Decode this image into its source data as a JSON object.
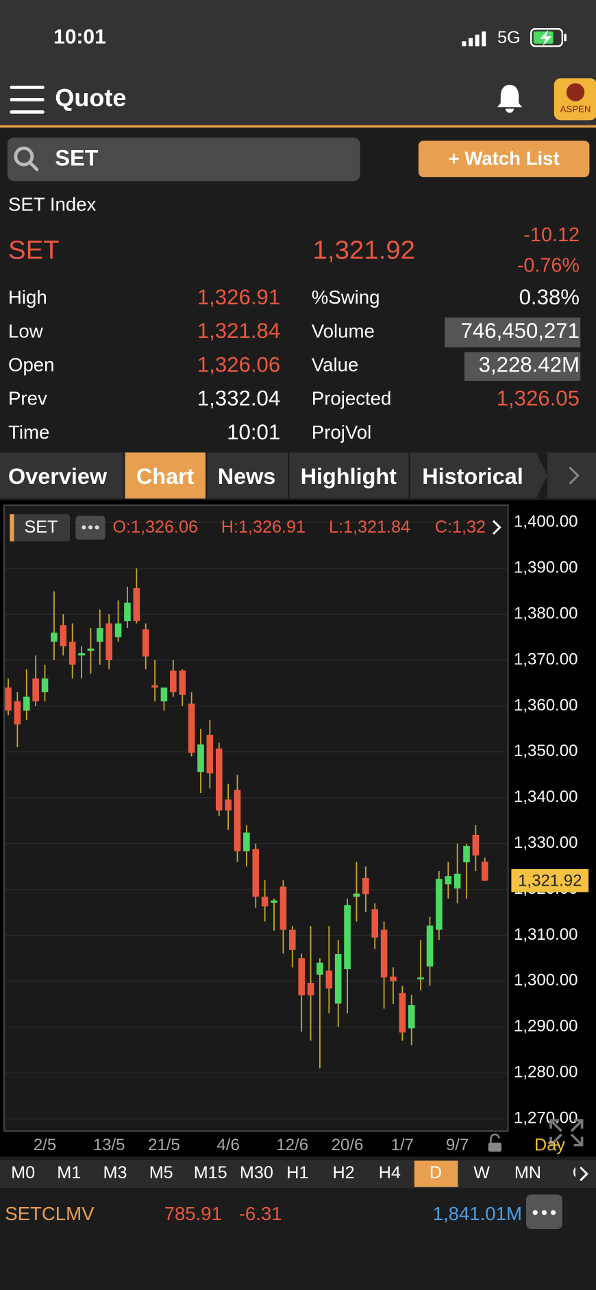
{
  "status_bar": {
    "time": "10:01",
    "network": "5G"
  },
  "nav": {
    "title": "Quote",
    "logo": "ASPEN"
  },
  "search": {
    "query": "SET",
    "button": "+ Watch List"
  },
  "quote": {
    "name": "SET Index",
    "symbol": "SET",
    "last": "1,321.92",
    "change": "-10.12",
    "change_pct": "-0.76%",
    "stats_left": [
      {
        "label": "High",
        "value": "1,326.91"
      },
      {
        "label": "Low",
        "value": "1,321.84"
      },
      {
        "label": "Open",
        "value": "1,326.06"
      },
      {
        "label": "Prev",
        "value": "1,332.04"
      },
      {
        "label": "Time",
        "value": "10:01"
      }
    ],
    "stats_right": [
      {
        "label": "%Swing",
        "value": "0.38%"
      },
      {
        "label": "Volume",
        "value": "746,450,271"
      },
      {
        "label": "Value",
        "value": "3,228.42M"
      },
      {
        "label": "Projected",
        "value": "1,326.05"
      },
      {
        "label": "ProjVol"
      }
    ]
  },
  "tabs": [
    "Overview",
    "Chart",
    "News",
    "Highlight",
    "Historical"
  ],
  "chart_data": {
    "type": "candlestick",
    "symbol": "SET",
    "header": [
      "O:1,326.06",
      "H:1,326.91",
      "L:1,321.84",
      "C:1,32"
    ],
    "categories": [
      null,
      null,
      null,
      null,
      "2/5",
      null,
      null,
      null,
      null,
      null,
      null,
      "13/5",
      null,
      null,
      null,
      null,
      null,
      "21/5",
      null,
      null,
      null,
      null,
      null,
      null,
      "4/6",
      null,
      null,
      null,
      null,
      null,
      null,
      "12/6",
      null,
      null,
      null,
      null,
      null,
      "20/6",
      null,
      null,
      null,
      null,
      null,
      "1/7",
      null,
      null,
      null,
      null,
      null,
      "9/7",
      null,
      null,
      null
    ],
    "open": [
      1364,
      1361,
      1359,
      1366,
      1363,
      1374,
      1377.6,
      1374,
      1371,
      1372,
      1374,
      1378,
      1375,
      1378.5,
      1385.7,
      1376.7,
      1364.5,
      1361,
      1367.7,
      1367.7,
      1360.5,
      1345.6,
      1353.7,
      1350.7,
      1339.6,
      1341.7,
      1328.3,
      1328.8,
      1318.4,
      1317.1,
      1320.6,
      1311.2,
      1305,
      1299.6,
      1301.4,
      1302.3,
      1295.1,
      1302.6,
      1318.4,
      1322.5,
      1315.7,
      1311.2,
      1301,
      1297.4,
      1289.7,
      1300.4,
      1303.2,
      1311.2,
      1321.1,
      1320.2,
      1325.9,
      1331.9,
      1326.06
    ],
    "high": [
      1366,
      1363,
      1368,
      1371,
      1369,
      1385,
      1380,
      1378,
      1373,
      1377,
      1381,
      1380,
      1383,
      1386,
      1390,
      1378,
      1370,
      1364,
      1370,
      1368,
      1363,
      1355,
      1357,
      1352,
      1343,
      1345,
      1334,
      1330,
      1322,
      1318,
      1322,
      1312,
      1306,
      1312,
      1305,
      1312,
      1309,
      1318,
      1326,
      1325,
      1317,
      1313,
      1303,
      1299,
      1297,
      1309,
      1314,
      1324,
      1326,
      1330,
      1330,
      1334,
      1326.91
    ],
    "low": [
      1358,
      1351,
      1357,
      1360,
      1361,
      1370,
      1371,
      1366,
      1366,
      1367,
      1369,
      1368,
      1374,
      1377,
      1378,
      1368,
      1361,
      1359,
      1362,
      1360,
      1349,
      1341,
      1342,
      1336,
      1333,
      1326,
      1325,
      1316,
      1313,
      1311,
      1306,
      1303,
      1289,
      1287,
      1281,
      1293,
      1290,
      1293,
      1313,
      1315,
      1307,
      1294,
      1295,
      1287,
      1286,
      1298,
      1299,
      1309,
      1318,
      1317,
      1318,
      1324,
      1321.84
    ],
    "close": [
      1359,
      1356,
      1362,
      1361,
      1366,
      1376,
      1373,
      1369,
      1371.5,
      1372.5,
      1377,
      1370,
      1378,
      1382.5,
      1378.5,
      1370.8,
      1364,
      1364,
      1363,
      1362.4,
      1349.8,
      1351.6,
      1345.3,
      1337.2,
      1337.2,
      1328.3,
      1332.4,
      1318.4,
      1316.3,
      1317.6,
      1311.2,
      1306.8,
      1296.9,
      1296.9,
      1304,
      1298.4,
      1305.9,
      1316.6,
      1319.1,
      1319,
      1309.5,
      1300.8,
      1300,
      1288.8,
      1294.8,
      1300.8,
      1312.1,
      1322.3,
      1322.9,
      1323.4,
      1329.5,
      1327.4,
      1321.92
    ],
    "up_color": "#4cd964",
    "down_color": "#e9573f",
    "wick_color": "#c9a62c",
    "ylim": [
      1267.3,
      1403.6
    ],
    "yticks": [
      {
        "value": 1400,
        "label": "1,400.00"
      },
      {
        "value": 1390,
        "label": "1,390.00"
      },
      {
        "value": 1380,
        "label": "1,380.00"
      },
      {
        "value": 1370,
        "label": "1,370.00"
      },
      {
        "value": 1360,
        "label": "1,360.00"
      },
      {
        "value": 1350,
        "label": "1,350.00"
      },
      {
        "value": 1340,
        "label": "1,340.00"
      },
      {
        "value": 1330,
        "label": "1,330.00"
      },
      {
        "value": 1320,
        "label": "1,320.00"
      },
      {
        "value": 1310,
        "label": "1,310.00"
      },
      {
        "value": 1300,
        "label": "1,300.00"
      },
      {
        "value": 1290,
        "label": "1,290.00"
      },
      {
        "value": 1280,
        "label": "1,280.00"
      },
      {
        "value": 1270,
        "label": "1,270.00"
      }
    ],
    "grid": true,
    "last_price": {
      "value": 1321.92,
      "label": "1,321.92"
    },
    "period": "Day"
  },
  "timeframes": [
    "M0",
    "M1",
    "M3",
    "M5",
    "M15",
    "M30",
    "H1",
    "H2",
    "H4",
    "D",
    "W",
    "MN",
    "C"
  ],
  "ticker": {
    "symbol": "SETCLMV",
    "price": "785.91",
    "change": "-6.31",
    "value": "1,841.01M"
  }
}
